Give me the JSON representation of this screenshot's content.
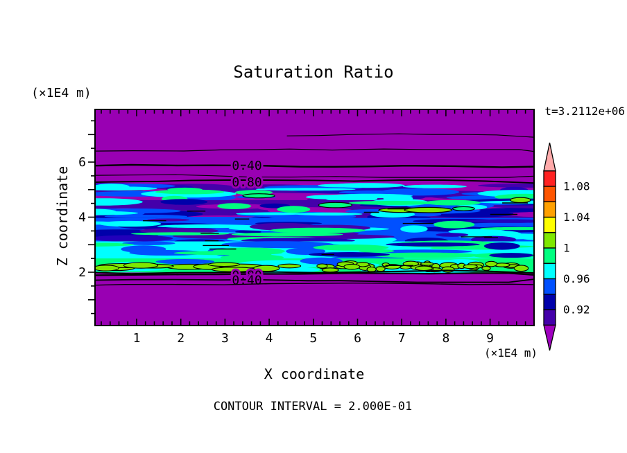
{
  "title": "Saturation Ratio",
  "annotations": {
    "time": "t=3.2112e+06",
    "y_units": "(×1E4 m)",
    "x_units": "(×1E4 m)",
    "contour_note": "CONTOUR INTERVAL = 2.000E-01"
  },
  "x_axis": {
    "label": "X coordinate",
    "tick_labels": [
      "1",
      "2",
      "3",
      "4",
      "5",
      "6",
      "7",
      "8",
      "9"
    ]
  },
  "y_axis": {
    "label": "Z coordinate",
    "tick_labels": [
      "2",
      "4",
      "6"
    ]
  },
  "colorbar": {
    "boundary_labels": [
      "1.08",
      "1.04",
      "1",
      "0.96",
      "0.92"
    ],
    "cell_colors_top_to_bottom": [
      "#FF2222",
      "#FF5500",
      "#FFA000",
      "#FFFF00",
      "#7FE800",
      "#00FF80",
      "#00FFFF",
      "#0050FF",
      "#0000AA",
      "#4400AA"
    ],
    "arrow_top_color": "#FFAAAA",
    "arrow_bottom_color": "#A000C0"
  },
  "field": {
    "background_color": "#9900B3",
    "bands": [
      {
        "z_top": 5.22,
        "z_bot": 4.55,
        "base": "#9900B3",
        "streaks": [
          [
            "#4400AA",
            16
          ],
          [
            "#2200BB",
            8
          ],
          [
            "#0050FF",
            10
          ],
          [
            "#00FFFF",
            12
          ],
          [
            "#00FF80",
            5
          ]
        ]
      },
      {
        "z_top": 4.62,
        "z_bot": 3.9,
        "base": "#4400AA",
        "streaks": [
          [
            "#9900B3",
            9
          ],
          [
            "#0000AA",
            12
          ],
          [
            "#0050FF",
            12
          ],
          [
            "#00FFFF",
            9
          ],
          [
            "#00FF80",
            4
          ]
        ]
      },
      {
        "z_top": 3.97,
        "z_bot": 3.05,
        "base": "#0050FF",
        "streaks": [
          [
            "#0000AA",
            12
          ],
          [
            "#00FFFF",
            14
          ],
          [
            "#4400AA",
            7
          ],
          [
            "#00FF80",
            6
          ],
          [
            "#2200BB",
            5
          ]
        ]
      },
      {
        "z_top": 3.12,
        "z_bot": 2.42,
        "base": "#00FFFF",
        "streaks": [
          [
            "#0050FF",
            11
          ],
          [
            "#00FF80",
            13
          ],
          [
            "#0000AA",
            4
          ]
        ]
      },
      {
        "z_top": 2.5,
        "z_bot": 1.99,
        "base": "#00FF80",
        "streaks": [
          [
            "#00FFFF",
            9
          ],
          [
            "#0050FF",
            3
          ]
        ]
      }
    ],
    "outlined_streaks": {
      "count": 6,
      "colors": [
        "#7FE800",
        "#00FF80"
      ],
      "z_min": 4.25,
      "z_max": 5.1
    },
    "blobs": {
      "color": "#7FE800",
      "outline": "#000000",
      "z_top": 2.42,
      "z_bot": 2.02,
      "left_count": 12,
      "right_count": 46
    },
    "fragment_count": 16,
    "contour_lines": [
      {
        "z": 6.95,
        "w": 1.2,
        "x_from": 4.4
      },
      {
        "z": 6.4,
        "w": 1.2
      },
      {
        "z": 5.87,
        "w": 2.4,
        "label": "0.40"
      },
      {
        "z": 5.52,
        "w": 1.2
      },
      {
        "z": 5.27,
        "w": 1.9,
        "label": "0.80"
      },
      {
        "z": 1.99,
        "w": 2.0
      },
      {
        "z": 1.89,
        "w": 2.2,
        "label": "0.80"
      },
      {
        "z": 1.71,
        "w": 1.8,
        "label": "0.40"
      },
      {
        "z": 1.53,
        "w": 1.4
      }
    ]
  },
  "chart_data": {
    "type": "heatmap",
    "title": "Saturation Ratio",
    "xlabel": "X coordinate",
    "ylabel": "Z coordinate",
    "x_units": "(×1E4 m)",
    "y_units": "(×1E4 m)",
    "xlim": [
      0,
      10
    ],
    "ylim": [
      0,
      8
    ],
    "x_ticks": [
      1,
      2,
      3,
      4,
      5,
      6,
      7,
      8,
      9
    ],
    "y_ticks": [
      2,
      4,
      6
    ],
    "grid": false,
    "legend_position": "right",
    "time_annotation": "t=3.2112e+06",
    "contour_interval": 0.2,
    "inline_contour_labels": [
      0.4,
      0.8
    ],
    "colorbar_boundaries": [
      1.1,
      1.08,
      1.06,
      1.04,
      1.02,
      1.0,
      0.98,
      0.96,
      0.94,
      0.92,
      0.9
    ],
    "description": "Horizontally stratified saturation-ratio field: uniform low-value purple background above z≈5.3 and below z≈1.9 (×1E4 m); a turbulent layered band between z≈1.9 and z≈5.3 grades from dark-violet and navy streaks at its top through blue and cyan to spring-green with black-outlined chartreuse blobs near z≈2, densest toward the right. Labeled contour lines 0.40 and 0.80 bound the band above and below."
  }
}
